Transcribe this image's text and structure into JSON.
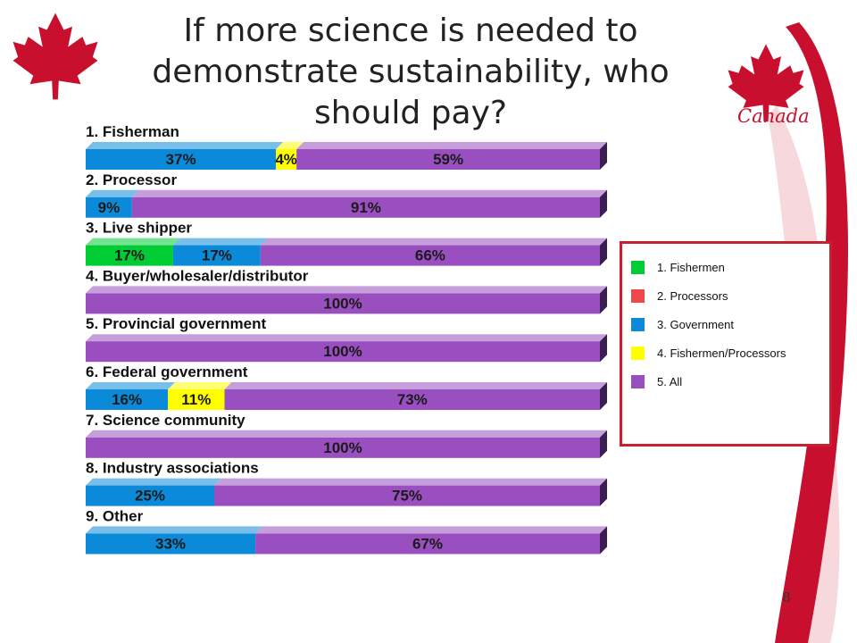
{
  "slide": {
    "title": "If more science is needed to demonstrate sustainability, who should pay?",
    "brand": "Canada",
    "page_number": "8"
  },
  "colors": {
    "fishermen": "#00cc33",
    "processors": "#f04848",
    "government": "#0a8ad8",
    "fishermen_processors": "#ffff00",
    "all": "#9a4fc0",
    "brand_red": "#c8102e"
  },
  "legend": {
    "items": [
      {
        "label": "1. Fishermen",
        "color": "#00cc33"
      },
      {
        "label": "2. Processors",
        "color": "#f04848"
      },
      {
        "label": "3. Government",
        "color": "#0a8ad8"
      },
      {
        "label": "4. Fishermen/Processors",
        "color": "#ffff00"
      },
      {
        "label": "5. All",
        "color": "#9a4fc0"
      }
    ]
  },
  "chart_data": {
    "type": "bar",
    "orientation": "horizontal",
    "stacked": true,
    "percent_stacked": true,
    "title": "If more science is needed to demonstrate sustainability, who should pay?",
    "legend_position": "right",
    "series_names": [
      "1. Fishermen",
      "2. Processors",
      "3. Government",
      "4. Fishermen/Processors",
      "5. All"
    ],
    "categories": [
      {
        "label": "1. Fisherman",
        "segments": [
          {
            "series": "3. Government",
            "value": 37,
            "label": "37%"
          },
          {
            "series": "4. Fishermen/Processors",
            "value": 4,
            "label": "4%"
          },
          {
            "series": "5. All",
            "value": 59,
            "label": "59%"
          }
        ]
      },
      {
        "label": "2. Processor",
        "segments": [
          {
            "series": "3. Government",
            "value": 9,
            "label": "9%"
          },
          {
            "series": "5. All",
            "value": 91,
            "label": "91%"
          }
        ]
      },
      {
        "label": "3. Live shipper",
        "segments": [
          {
            "series": "1. Fishermen",
            "value": 17,
            "label": "17%"
          },
          {
            "series": "3. Government",
            "value": 17,
            "label": "17%"
          },
          {
            "series": "5. All",
            "value": 66,
            "label": "66%"
          }
        ]
      },
      {
        "label": "4. Buyer/wholesaler/distributor",
        "segments": [
          {
            "series": "5. All",
            "value": 100,
            "label": "100%"
          }
        ]
      },
      {
        "label": "5. Provincial government",
        "segments": [
          {
            "series": "5. All",
            "value": 100,
            "label": "100%"
          }
        ]
      },
      {
        "label": "6. Federal government",
        "segments": [
          {
            "series": "3. Government",
            "value": 16,
            "label": "16%"
          },
          {
            "series": "4. Fishermen/Processors",
            "value": 11,
            "label": "11%"
          },
          {
            "series": "5. All",
            "value": 73,
            "label": "73%"
          }
        ]
      },
      {
        "label": "7. Science community",
        "segments": [
          {
            "series": "5. All",
            "value": 100,
            "label": "100%"
          }
        ]
      },
      {
        "label": "8. Industry associations",
        "segments": [
          {
            "series": "3. Government",
            "value": 25,
            "label": "25%"
          },
          {
            "series": "5. All",
            "value": 75,
            "label": "75%"
          }
        ]
      },
      {
        "label": "9. Other",
        "segments": [
          {
            "series": "3. Government",
            "value": 33,
            "label": "33%"
          },
          {
            "series": "5. All",
            "value": 67,
            "label": "67%"
          }
        ]
      }
    ],
    "xlim": [
      0,
      100
    ]
  }
}
